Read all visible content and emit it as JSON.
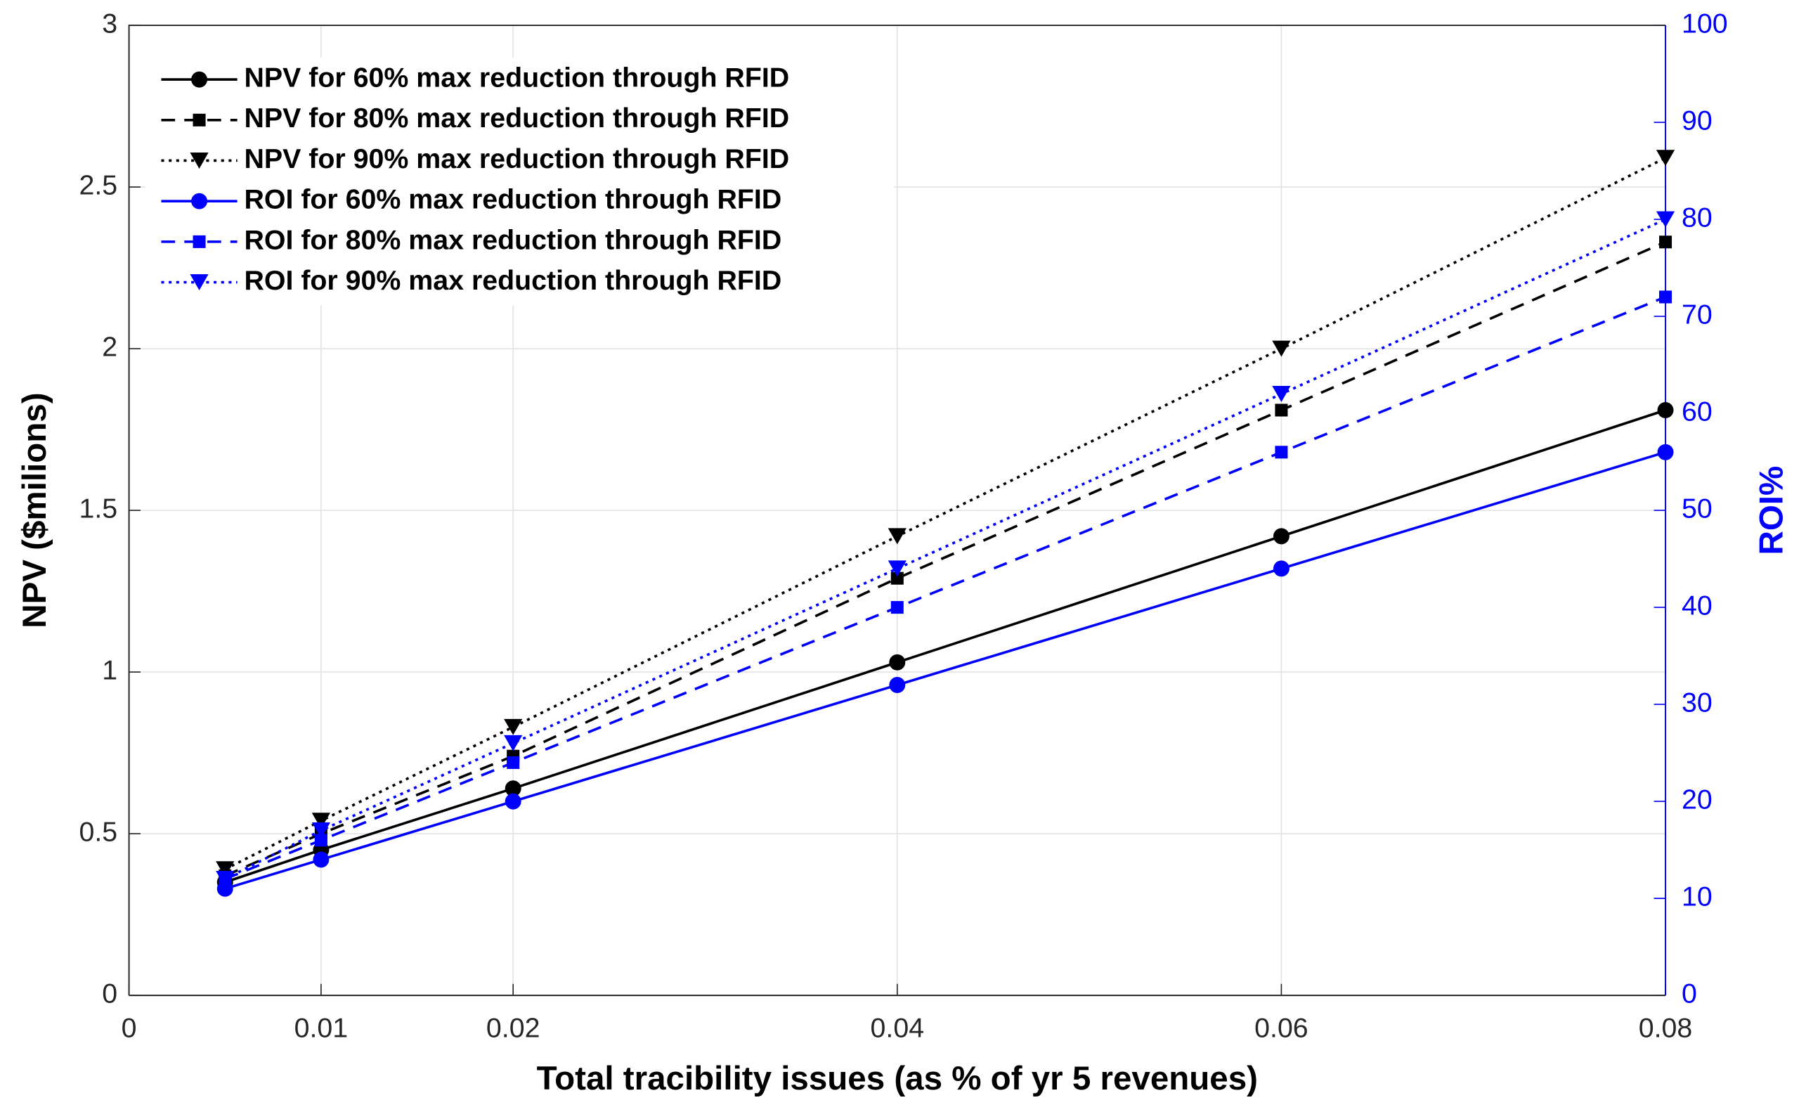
{
  "chart_data": {
    "type": "line",
    "xlabel": "Total tracibility issues  (as % of yr 5 revenues)",
    "ylabel": "NPV ($milions)",
    "y2label": "ROI%",
    "x": [
      0.005,
      0.01,
      0.02,
      0.04,
      0.06,
      0.08
    ],
    "xlim": [
      0,
      0.08
    ],
    "xticks": [
      0,
      0.01,
      0.02,
      0.04,
      0.06,
      0.08
    ],
    "ylim": [
      0,
      3
    ],
    "yticks": [
      0,
      0.5,
      1,
      1.5,
      2,
      2.5,
      3
    ],
    "y2lim": [
      0,
      100
    ],
    "y2ticks": [
      0,
      10,
      20,
      30,
      40,
      50,
      60,
      70,
      80,
      90,
      100
    ],
    "y2color": "#0000ff",
    "grid": true,
    "legend": "upper left",
    "series": [
      {
        "name": "NPV for 60% max reduction through RFID",
        "color": "#000000",
        "line_style": "solid",
        "marker": "circle",
        "values": [
          0.35,
          0.45,
          0.64,
          1.03,
          1.42,
          1.81
        ]
      },
      {
        "name": "NPV for 80% max reduction through RFID",
        "color": "#000000",
        "line_style": "dashed",
        "marker": "square",
        "values": [
          0.37,
          0.5,
          0.74,
          1.29,
          1.81,
          2.33
        ]
      },
      {
        "name": "NPV for 90% max reduction through RFID",
        "color": "#000000",
        "line_style": "dotted",
        "marker": "triangle-down",
        "values": [
          0.39,
          0.54,
          0.83,
          1.42,
          2.0,
          2.59
        ]
      },
      {
        "name": "ROI for 60% max reduction through RFID",
        "color": "#0000ff",
        "line_style": "solid",
        "marker": "circle",
        "axis": "y2",
        "values": [
          11,
          14,
          20,
          32,
          44,
          56
        ]
      },
      {
        "name": "ROI for 80% max reduction through RFID",
        "color": "#0000ff",
        "line_style": "dashed",
        "marker": "square",
        "axis": "y2",
        "values": [
          12,
          16,
          24,
          40,
          56,
          72
        ]
      },
      {
        "name": "ROI for 90% max reduction through RFID",
        "color": "#0000ff",
        "line_style": "dotted",
        "marker": "triangle-down",
        "axis": "y2",
        "values": [
          12,
          17,
          26,
          44,
          62,
          80
        ]
      }
    ]
  }
}
